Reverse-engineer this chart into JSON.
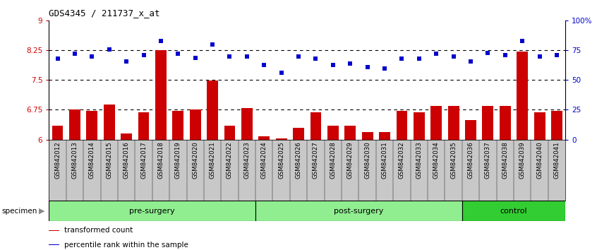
{
  "title": "GDS4345 / 211737_x_at",
  "samples": [
    "GSM842012",
    "GSM842013",
    "GSM842014",
    "GSM842015",
    "GSM842016",
    "GSM842017",
    "GSM842018",
    "GSM842019",
    "GSM842020",
    "GSM842021",
    "GSM842022",
    "GSM842023",
    "GSM842024",
    "GSM842025",
    "GSM842026",
    "GSM842027",
    "GSM842028",
    "GSM842029",
    "GSM842030",
    "GSM842031",
    "GSM842032",
    "GSM842033",
    "GSM842034",
    "GSM842035",
    "GSM842036",
    "GSM842037",
    "GSM842038",
    "GSM842039",
    "GSM842040",
    "GSM842041"
  ],
  "bar_values": [
    6.35,
    6.75,
    6.72,
    6.88,
    6.15,
    6.68,
    8.26,
    6.72,
    6.75,
    7.49,
    6.35,
    6.8,
    6.08,
    6.03,
    6.3,
    6.68,
    6.35,
    6.35,
    6.18,
    6.18,
    6.72,
    6.68,
    6.85,
    6.85,
    6.5,
    6.85,
    6.85,
    8.22,
    6.68,
    6.73
  ],
  "percentile_values": [
    68,
    72,
    70,
    76,
    66,
    71,
    83,
    72,
    69,
    80,
    70,
    70,
    63,
    56,
    70,
    68,
    63,
    64,
    61,
    60,
    68,
    68,
    72,
    70,
    66,
    73,
    71,
    83,
    70,
    71
  ],
  "groups": [
    {
      "label": "pre-surgery",
      "start": 0,
      "end": 12,
      "color": "#90EE90"
    },
    {
      "label": "post-surgery",
      "start": 12,
      "end": 24,
      "color": "#90EE90"
    },
    {
      "label": "control",
      "start": 24,
      "end": 30,
      "color": "#32CD32"
    }
  ],
  "bar_color": "#CC0000",
  "dot_color": "#0000CC",
  "ylim_left": [
    6.0,
    9.0
  ],
  "ylim_right": [
    0,
    100
  ],
  "yticks_left": [
    6.0,
    6.75,
    7.5,
    8.25,
    9.0
  ],
  "ytick_labels_left": [
    "6",
    "6.75",
    "7.5",
    "8.25",
    "9"
  ],
  "yticks_right": [
    0,
    25,
    50,
    75,
    100
  ],
  "ytick_labels_right": [
    "0",
    "25",
    "50",
    "75",
    "100%"
  ],
  "hlines": [
    6.75,
    7.5,
    8.25
  ],
  "legend_items": [
    {
      "label": "transformed count",
      "color": "#CC0000"
    },
    {
      "label": "percentile rank within the sample",
      "color": "#0000CC"
    }
  ],
  "specimen_label": "specimen",
  "bar_width": 0.65,
  "xtick_bg": "#C8C8C8",
  "fig_width": 8.46,
  "fig_height": 3.54,
  "fig_dpi": 100
}
